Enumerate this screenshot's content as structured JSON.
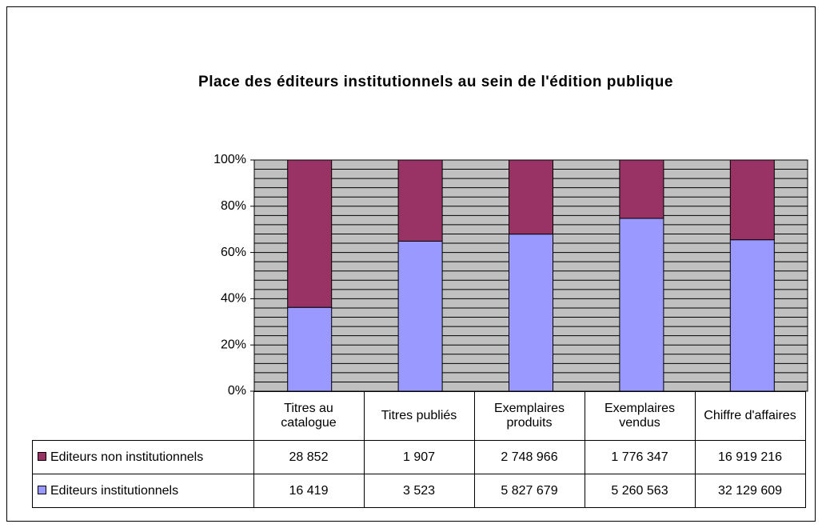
{
  "chart_data": {
    "type": "bar",
    "stacked_percent": true,
    "title": "Place des éditeurs institutionnels au sein de l'édition publique",
    "categories": [
      "Titres au catalogue",
      "Titres publiés",
      "Exemplaires produits",
      "Exemplaires vendus",
      "Chiffre d'affaires"
    ],
    "series": [
      {
        "name": "Editeurs non institutionnels",
        "color": "#993366",
        "values": [
          28852,
          1907,
          2748966,
          1776347,
          16919216
        ],
        "value_labels": [
          "28 852",
          "1 907",
          "2 748 966",
          "1 776 347",
          "16 919 216"
        ]
      },
      {
        "name": "Editeurs institutionnels",
        "color": "#9999ff",
        "values": [
          16419,
          3523,
          5827679,
          5260563,
          32129609
        ],
        "value_labels": [
          "16 419",
          "3 523",
          "5 827 679",
          "5 260 563",
          "32 129 609"
        ]
      }
    ],
    "ylim": [
      0,
      100
    ],
    "yticks": [
      {
        "value": 0,
        "label": "0%"
      },
      {
        "value": 20,
        "label": "20%"
      },
      {
        "value": 40,
        "label": "40%"
      },
      {
        "value": 60,
        "label": "60%"
      },
      {
        "value": 80,
        "label": "80%"
      },
      {
        "value": 100,
        "label": "100%"
      }
    ],
    "minor_yticks": [
      4,
      8,
      12,
      16,
      24,
      28,
      32,
      36,
      44,
      48,
      52,
      56,
      64,
      68,
      72,
      76,
      84,
      88,
      92,
      96
    ],
    "grid": true,
    "plot_background": "#c0c0c0"
  }
}
